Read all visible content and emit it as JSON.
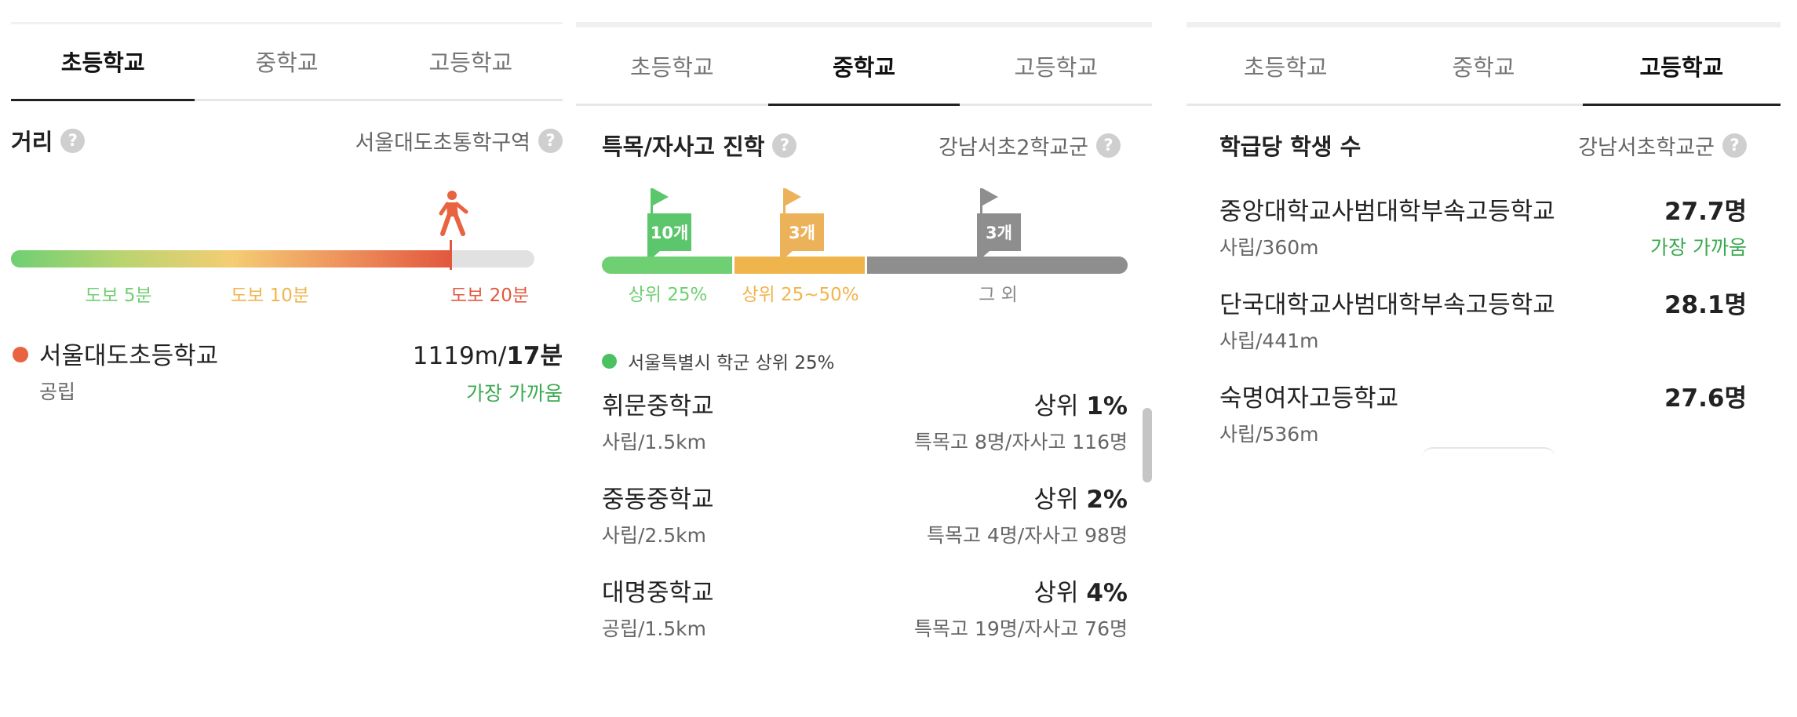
{
  "panels": {
    "elementary": {
      "tabs": [
        "초등학교",
        "중학교",
        "고등학교"
      ],
      "section_title": "거리",
      "district": "서울대도초통학구역",
      "walk_labels": [
        "도보 5분",
        "도보 10분",
        "도보 20분"
      ],
      "walk_label_colors": [
        "#6fcf73",
        "#f0b44d",
        "#e2583e"
      ],
      "walk_position_fraction": 0.84,
      "school": {
        "name": "서울대도초등학교",
        "type": "공립",
        "distance": "1119m/",
        "time": "17분",
        "badge": "가장 가까움"
      }
    },
    "middle": {
      "tabs": [
        "초등학교",
        "중학교",
        "고등학교"
      ],
      "section_title": "특목/자사고 진학",
      "district": "강남서초2학교군",
      "flags": [
        {
          "count": "10개",
          "color": "#5cc66c"
        },
        {
          "count": "3개",
          "color": "#ecb259"
        },
        {
          "count": "3개",
          "color": "#8e8e8e"
        }
      ],
      "bands": [
        {
          "label": "상위 25%",
          "color": "#6fcf73"
        },
        {
          "label": "상위 25~50%",
          "color": "#f0b44d"
        },
        {
          "label": "그 외",
          "color": "#8e8e8e"
        }
      ],
      "legend": "서울특별시 학군 상위 25%",
      "legend_color": "#4cc161",
      "schools": [
        {
          "name": "휘문중학교",
          "rank_prefix": "상위 ",
          "rank": "1%",
          "type": "사립/1.5km",
          "detail": "특목고 8명/자사고 116명"
        },
        {
          "name": "중동중학교",
          "rank_prefix": "상위 ",
          "rank": "2%",
          "type": "사립/2.5km",
          "detail": "특목고 4명/자사고 98명"
        },
        {
          "name": "대명중학교",
          "rank_prefix": "상위 ",
          "rank": "4%",
          "type": "공립/1.5km",
          "detail": "특목고 19명/자사고 76명"
        }
      ]
    },
    "high": {
      "tabs": [
        "초등학교",
        "중학교",
        "고등학교"
      ],
      "section_title": "학급당 학생 수",
      "district": "강남서초학교군",
      "schools": [
        {
          "name": "중앙대학교사범대학부속고등학교",
          "value": "27.7명",
          "type": "사립/360m",
          "badge": "가장 가까움"
        },
        {
          "name": "단국대학교사범대학부속고등학교",
          "value": "28.1명",
          "type": "사립/441m",
          "badge": ""
        },
        {
          "name": "숙명여자고등학교",
          "value": "27.6명",
          "type": "사립/536m",
          "badge": ""
        }
      ]
    }
  }
}
